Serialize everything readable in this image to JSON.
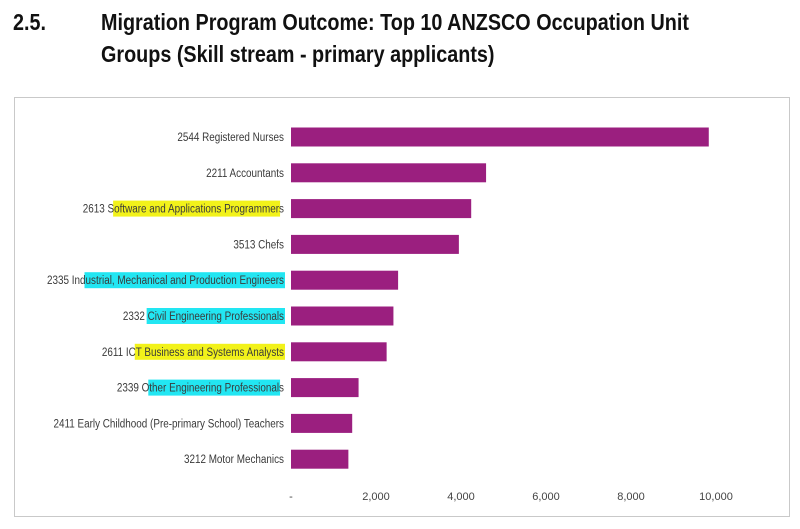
{
  "heading": {
    "section_number": "2.5.",
    "title_line1": "Migration Program Outcome: Top 10 ANZSCO Occupation Unit",
    "title_line2": "Groups (Skill stream - primary applicants)"
  },
  "colors": {
    "bar": "#9b1f7f",
    "highlight_yellow": "#f2f21a",
    "highlight_cyan": "#22e6f2",
    "frame": "#c9c9c9"
  },
  "chart_data": {
    "type": "bar",
    "orientation": "horizontal",
    "title": "",
    "xlabel": "",
    "ylabel": "",
    "xlim": [
      0,
      10000
    ],
    "grid": false,
    "legend": "none",
    "categories": [
      "2544 Registered Nurses",
      "2211 Accountants",
      "2613 Software and Applications Programmers",
      "3513 Chefs",
      "2335 Industrial, Mechanical and Production Engineers",
      "2332 Civil Engineering Professionals",
      "2611 ICT Business and Systems Analysts",
      "2339 Other Engineering Professionals",
      "2411 Early Childhood (Pre-primary School) Teachers",
      "3212 Motor Mechanics"
    ],
    "values": [
      9830,
      4590,
      4240,
      3950,
      2520,
      2410,
      2250,
      1590,
      1440,
      1350
    ],
    "x_ticks": [
      0,
      2000,
      4000,
      6000,
      8000,
      10000
    ],
    "x_tick_labels": [
      "-",
      "2,000",
      "4,000",
      "6,000",
      "8,000",
      "10,000"
    ],
    "label_highlights": [
      null,
      null,
      {
        "color": "yellow",
        "start": 6,
        "end": 41
      },
      null,
      {
        "color": "cyan",
        "start": 8,
        "end": 52
      },
      {
        "color": "cyan",
        "start": 5,
        "end": 36
      },
      {
        "color": "yellow",
        "start": 7,
        "end": 38
      },
      {
        "color": "cyan",
        "start": 6,
        "end": 35
      },
      null,
      null
    ]
  }
}
